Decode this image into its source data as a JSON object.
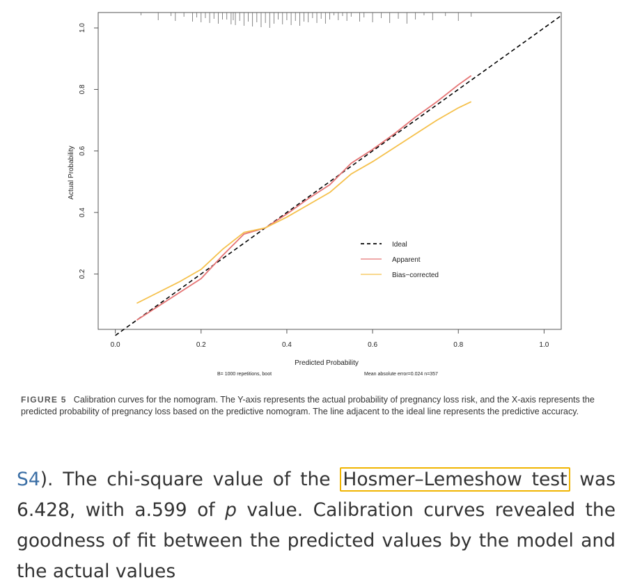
{
  "chart_data": {
    "type": "line",
    "xlabel": "Predicted Probability",
    "ylabel": "Actual Probability",
    "xlim": [
      -0.04,
      1.04
    ],
    "ylim": [
      0.02,
      1.05
    ],
    "x_ticks": [
      "0.0",
      "0.2",
      "0.4",
      "0.6",
      "0.8",
      "1.0"
    ],
    "y_ticks": [
      "0.2",
      "0.4",
      "0.6",
      "0.8",
      "1.0"
    ],
    "legend": {
      "position": "center-right",
      "entries": [
        "Ideal",
        "Apparent",
        "Bias−corrected"
      ]
    },
    "series": [
      {
        "name": "Ideal",
        "color": "#000000",
        "style": "dashed",
        "x": [
          0.0,
          1.04
        ],
        "y": [
          0.0,
          1.04
        ]
      },
      {
        "name": "Apparent",
        "color": "#e57373",
        "style": "solid",
        "x": [
          0.05,
          0.1,
          0.15,
          0.2,
          0.25,
          0.3,
          0.35,
          0.4,
          0.45,
          0.5,
          0.55,
          0.6,
          0.65,
          0.7,
          0.75,
          0.8,
          0.83
        ],
        "y": [
          0.05,
          0.095,
          0.14,
          0.185,
          0.26,
          0.33,
          0.35,
          0.395,
          0.445,
          0.49,
          0.56,
          0.605,
          0.655,
          0.71,
          0.76,
          0.815,
          0.845
        ]
      },
      {
        "name": "Bias−corrected",
        "color": "#f5c04a",
        "style": "solid",
        "x": [
          0.05,
          0.1,
          0.15,
          0.2,
          0.25,
          0.3,
          0.35,
          0.4,
          0.45,
          0.5,
          0.55,
          0.6,
          0.65,
          0.7,
          0.75,
          0.8,
          0.83
        ],
        "y": [
          0.105,
          0.14,
          0.175,
          0.215,
          0.28,
          0.335,
          0.35,
          0.385,
          0.425,
          0.465,
          0.525,
          0.565,
          0.61,
          0.655,
          0.7,
          0.74,
          0.76
        ]
      }
    ],
    "rug_x": [
      0.06,
      0.1,
      0.13,
      0.14,
      0.16,
      0.18,
      0.19,
      0.2,
      0.21,
      0.22,
      0.23,
      0.24,
      0.25,
      0.26,
      0.27,
      0.275,
      0.28,
      0.29,
      0.3,
      0.31,
      0.32,
      0.33,
      0.34,
      0.35,
      0.36,
      0.37,
      0.38,
      0.39,
      0.4,
      0.41,
      0.42,
      0.43,
      0.44,
      0.45,
      0.46,
      0.47,
      0.48,
      0.49,
      0.5,
      0.51,
      0.52,
      0.53,
      0.54,
      0.55,
      0.57,
      0.58,
      0.6,
      0.62,
      0.64,
      0.66,
      0.68,
      0.7,
      0.72,
      0.74,
      0.77,
      0.8,
      0.83
    ],
    "annotation_left": "B= 1000 repetitions, boot",
    "annotation_right": "Mean absolute error=0.024 n=357"
  },
  "caption": {
    "label": "FIGURE 5",
    "text": "Calibration curves for the nomogram. The Y-axis represents the actual probability of pregnancy loss risk, and the X-axis represents the predicted probability of pregnancy loss based on the predictive nomogram. The line adjacent to the ideal line represents the predictive accuracy."
  },
  "body": {
    "ref": "S4",
    "after_ref": "). The chi-square value of the ",
    "highlight": "Hosmer–Lemeshow test",
    "after_highlight": " was 6.428, with a.599 of ",
    "p_italic": "p",
    "rest": " value. Calibration curves revealed the goodness of fit between the predicted values by the model and the actual values"
  }
}
